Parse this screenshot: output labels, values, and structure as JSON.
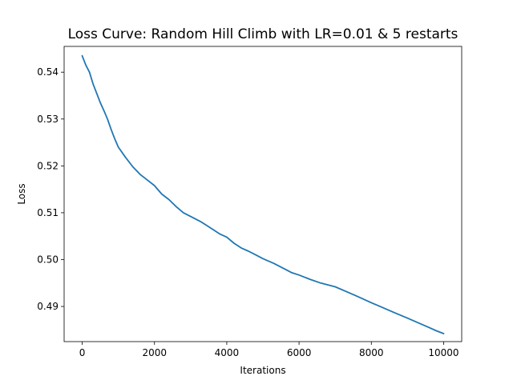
{
  "chart_data": {
    "type": "line",
    "title": "Loss Curve: Random Hill Climb with LR=0.01 & 5 restarts",
    "xlabel": "Iterations",
    "ylabel": "Loss",
    "xlim": [
      -500,
      10500
    ],
    "ylim": [
      0.4825,
      0.5455
    ],
    "xticks": [
      0,
      2000,
      4000,
      6000,
      8000,
      10000
    ],
    "xtick_labels": [
      "0",
      "2000",
      "4000",
      "6000",
      "8000",
      "10000"
    ],
    "yticks": [
      0.49,
      0.5,
      0.51,
      0.52,
      0.53,
      0.54
    ],
    "ytick_labels": [
      "0.49",
      "0.50",
      "0.51",
      "0.52",
      "0.53",
      "0.54"
    ],
    "grid": false,
    "series": [
      {
        "color": "#1f77b4",
        "x": [
          0,
          100,
          200,
          300,
          400,
          500,
          600,
          700,
          800,
          900,
          1000,
          1200,
          1400,
          1600,
          1800,
          2000,
          2200,
          2400,
          2600,
          2800,
          3000,
          3300,
          3600,
          3800,
          4000,
          4200,
          4400,
          4600,
          4800,
          5000,
          5300,
          5600,
          5800,
          6000,
          6300,
          6600,
          7000,
          7300,
          7600,
          8000,
          8300,
          8600,
          9000,
          9300,
          9600,
          9800,
          10000
        ],
        "y": [
          0.5435,
          0.5415,
          0.54,
          0.5375,
          0.5355,
          0.5335,
          0.5318,
          0.53,
          0.5278,
          0.5258,
          0.524,
          0.5218,
          0.5198,
          0.5182,
          0.517,
          0.5158,
          0.514,
          0.5128,
          0.5113,
          0.51,
          0.5092,
          0.508,
          0.5065,
          0.5055,
          0.5048,
          0.5035,
          0.5025,
          0.5018,
          0.501,
          0.5002,
          0.4992,
          0.498,
          0.4972,
          0.4967,
          0.4958,
          0.495,
          0.4942,
          0.4932,
          0.4922,
          0.4908,
          0.4898,
          0.4888,
          0.4875,
          0.4865,
          0.4855,
          0.4848,
          0.4842
        ]
      }
    ]
  }
}
